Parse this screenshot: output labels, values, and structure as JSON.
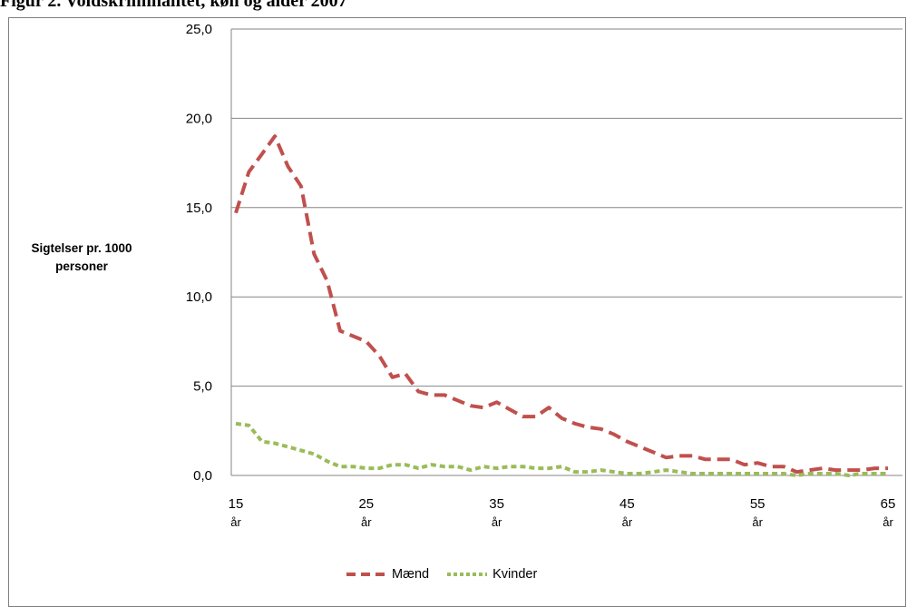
{
  "figure_title": "Figur 2. Voldskriminalitet, køn og alder 2007",
  "chart_data": {
    "type": "line",
    "title": "Figur 2. Voldskriminalitet, køn og alder 2007",
    "ylabel": "Sigtelser pr. 1000 personer",
    "ylabel_lines": [
      "Sigtelser pr. 1000",
      "personer"
    ],
    "xlabel": "",
    "ylim": [
      0,
      25
    ],
    "y_ticks": [
      0,
      5,
      10,
      15,
      20,
      25
    ],
    "y_tick_labels": [
      "0,0",
      "5,0",
      "10,0",
      "15,0",
      "20,0",
      "25,0"
    ],
    "x_tick_values": [
      15,
      25,
      35,
      45,
      55,
      65
    ],
    "x_tick_labels": [
      "15",
      "25",
      "35",
      "45",
      "55",
      "65"
    ],
    "x_tick_unit": "år",
    "grid": "horizontal",
    "legend_position": "bottom",
    "x": [
      15,
      16,
      17,
      18,
      19,
      20,
      21,
      22,
      23,
      24,
      25,
      26,
      27,
      28,
      29,
      30,
      31,
      32,
      33,
      34,
      35,
      36,
      37,
      38,
      39,
      40,
      41,
      42,
      43,
      44,
      45,
      46,
      47,
      48,
      49,
      50,
      51,
      52,
      53,
      54,
      55,
      56,
      57,
      58,
      59,
      60,
      61,
      62,
      63,
      64,
      65
    ],
    "series": [
      {
        "name": "Mænd",
        "color": "#c0504d",
        "dash": "dashed",
        "values": [
          14.7,
          17.0,
          18.0,
          19.0,
          17.3,
          16.2,
          12.4,
          10.9,
          8.1,
          7.8,
          7.5,
          6.7,
          5.5,
          5.7,
          4.7,
          4.5,
          4.5,
          4.2,
          3.9,
          3.8,
          4.1,
          3.7,
          3.3,
          3.3,
          3.8,
          3.2,
          2.9,
          2.7,
          2.6,
          2.3,
          1.9,
          1.6,
          1.3,
          1.0,
          1.1,
          1.1,
          0.9,
          0.9,
          0.9,
          0.6,
          0.7,
          0.5,
          0.5,
          0.2,
          0.3,
          0.4,
          0.3,
          0.3,
          0.3,
          0.4,
          0.4
        ]
      },
      {
        "name": "Kvinder",
        "color": "#9bbb59",
        "dash": "dotted",
        "values": [
          2.9,
          2.8,
          1.9,
          1.8,
          1.6,
          1.4,
          1.2,
          0.8,
          0.5,
          0.5,
          0.4,
          0.4,
          0.6,
          0.6,
          0.4,
          0.6,
          0.5,
          0.5,
          0.3,
          0.5,
          0.4,
          0.5,
          0.5,
          0.4,
          0.4,
          0.5,
          0.2,
          0.2,
          0.3,
          0.2,
          0.1,
          0.1,
          0.2,
          0.3,
          0.2,
          0.1,
          0.1,
          0.1,
          0.1,
          0.1,
          0.1,
          0.1,
          0.1,
          0.0,
          0.1,
          0.1,
          0.1,
          0.0,
          0.1,
          0.1,
          0.1
        ]
      }
    ]
  }
}
